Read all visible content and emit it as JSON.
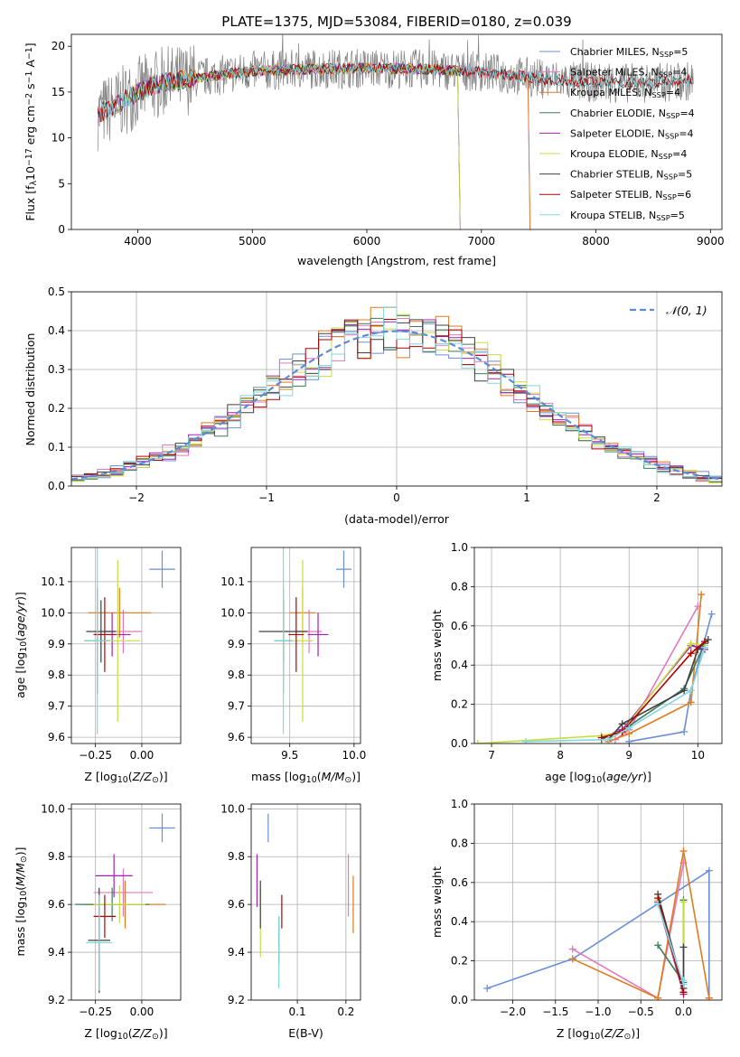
{
  "figure_title": "PLATE=1375, MJD=53084, FIBERID=0180, z=0.039",
  "colors": {
    "Chabrier MILES": "#6a8fd6",
    "Salpeter MILES": "#e377c2",
    "Kroupa MILES": "#e07b20",
    "Chabrier ELODIE": "#3b7a57",
    "Salpeter ELODIE": "#a020b0",
    "Kroupa ELODIE": "#c8dc40",
    "Chabrier STELIB": "#404040",
    "Salpeter STELIB": "#b00000",
    "Kroupa STELIB": "#80d8e0"
  },
  "chart_data": [
    {
      "id": "spectrum",
      "type": "line",
      "title": "PLATE=1375, MJD=53084, FIBERID=0180, z=0.039",
      "xlabel": "wavelength [Angstrom, rest frame]",
      "ylabel": "Flux [f_λ10^-17 erg cm^-2 s^-1 A^-1]",
      "xlim": [
        3420,
        9100
      ],
      "ylim": [
        0,
        21.3
      ],
      "xticks": [
        4000,
        5000,
        6000,
        7000,
        8000,
        9000
      ],
      "yticks": [
        0,
        5,
        10,
        15,
        20
      ],
      "legend_position": "top-right",
      "legend": [
        {
          "label": "Chabrier MILES, N",
          "sub": "SSP",
          "sup": "=5"
        },
        {
          "label": "Salpeter MILES, N",
          "sub": "SSP",
          "sup": "=4"
        },
        {
          "label": "Kroupa MILES, N",
          "sub": "SSP",
          "sup": "=4"
        },
        {
          "label": "Chabrier ELODIE, N",
          "sub": "SSP",
          "sup": "=4"
        },
        {
          "label": "Salpeter ELODIE, N",
          "sub": "SSP",
          "sup": "=4"
        },
        {
          "label": "Kroupa ELODIE, N",
          "sub": "SSP",
          "sup": "=4"
        },
        {
          "label": "Chabrier STELIB, N",
          "sub": "SSP",
          "sup": "=5"
        },
        {
          "label": "Salpeter STELIB, N",
          "sub": "SSP",
          "sup": "=6"
        },
        {
          "label": "Kroupa STELIB, N",
          "sub": "SSP",
          "sup": "=5"
        }
      ],
      "continuum": {
        "x": [
          3650,
          3800,
          4000,
          4200,
          4500,
          4800,
          5000,
          5500,
          6000,
          6500,
          7000,
          7500,
          8000,
          8500,
          8850
        ],
        "y": [
          12.5,
          13.5,
          15.0,
          16.0,
          16.5,
          17.0,
          17.3,
          17.5,
          17.6,
          17.5,
          17.2,
          16.5,
          16.0,
          16.0,
          16.2
        ]
      },
      "model_ranges": [
        {
          "model": "Chabrier MILES",
          "x": [
            3650,
            7410
          ]
        },
        {
          "model": "Salpeter MILES",
          "x": [
            3650,
            7410
          ]
        },
        {
          "model": "Kroupa MILES",
          "x": [
            3650,
            7410
          ]
        },
        {
          "model": "Chabrier ELODIE",
          "x": [
            3900,
            6800
          ]
        },
        {
          "model": "Salpeter ELODIE",
          "x": [
            3900,
            6800
          ]
        },
        {
          "model": "Kroupa ELODIE",
          "x": [
            3900,
            6800
          ]
        },
        {
          "model": "Chabrier STELIB",
          "x": [
            3650,
            8850
          ]
        },
        {
          "model": "Salpeter STELIB",
          "x": [
            3650,
            8850
          ]
        },
        {
          "model": "Kroupa STELIB",
          "x": [
            3650,
            8850
          ]
        }
      ]
    },
    {
      "id": "residuals",
      "type": "histogram",
      "xlabel": "(data-model)/error",
      "ylabel": "Normed distribution",
      "xlim": [
        -2.5,
        2.5
      ],
      "ylim": [
        0,
        0.5
      ],
      "xticks": [
        -2,
        -1,
        0,
        1,
        2
      ],
      "yticks": [
        0.0,
        0.1,
        0.2,
        0.3,
        0.4,
        0.5
      ],
      "grid": true,
      "legend_position": "top-right",
      "reference_curve": {
        "label": "𝒩(0, 1)",
        "mean": 0,
        "sigma": 1,
        "style": "dashed"
      }
    },
    {
      "id": "age-vs-Z",
      "type": "scatter",
      "xlabel": "Z [log10(Z/Z⊙)]",
      "ylabel": "age [log10(age/yr)]",
      "xlim": [
        -0.38,
        0.21
      ],
      "ylim": [
        9.58,
        10.21
      ],
      "xticks": [
        -0.25,
        0.0
      ],
      "yticks": [
        9.6,
        9.7,
        9.8,
        9.9,
        10.0,
        10.1
      ],
      "grid": true,
      "points": [
        {
          "model": "Chabrier MILES",
          "x": 0.11,
          "y": 10.14,
          "xerr": 0.07,
          "yerr": 0.06
        },
        {
          "model": "Salpeter MILES",
          "x": -0.1,
          "y": 9.94,
          "xerr": 0.1,
          "yerr": 0.07
        },
        {
          "model": "Kroupa MILES",
          "x": -0.12,
          "y": 10.0,
          "xerr": 0.17,
          "yerr": 0.08
        },
        {
          "model": "Chabrier ELODIE",
          "x": -0.24,
          "y": 9.91,
          "xerr": 0.07,
          "yerr": 0.17
        },
        {
          "model": "Salpeter ELODIE",
          "x": -0.16,
          "y": 9.93,
          "xerr": 0.1,
          "yerr": 0.07
        },
        {
          "model": "Kroupa ELODIE",
          "x": -0.13,
          "y": 9.91,
          "xerr": 0.12,
          "yerr": 0.26
        },
        {
          "model": "Chabrier STELIB",
          "x": -0.22,
          "y": 9.94,
          "xerr": 0.08,
          "yerr": 0.1
        },
        {
          "model": "Salpeter STELIB",
          "x": -0.2,
          "y": 9.93,
          "xerr": 0.06,
          "yerr": 0.12
        },
        {
          "model": "Kroupa STELIB",
          "x": -0.24,
          "y": 9.91,
          "xerr": 0.07,
          "yerr": 0.3
        }
      ]
    },
    {
      "id": "age-vs-mass",
      "type": "scatter",
      "xlabel": "mass [log10(M/M⊙)]",
      "ylabel": "",
      "xlim": [
        9.2,
        10.05
      ],
      "ylim": [
        9.58,
        10.21
      ],
      "xticks": [
        9.5,
        10.0
      ],
      "yticks": [
        9.6,
        9.7,
        9.8,
        9.9,
        10.0,
        10.1
      ],
      "grid": true,
      "points": [
        {
          "model": "Chabrier MILES",
          "x": 9.92,
          "y": 10.14,
          "xerr": 0.06,
          "yerr": 0.06
        },
        {
          "model": "Salpeter MILES",
          "x": 9.65,
          "y": 9.94,
          "xerr": 0.1,
          "yerr": 0.07
        },
        {
          "model": "Kroupa MILES",
          "x": 9.6,
          "y": 10.0,
          "xerr": 0.1,
          "yerr": 0.08
        },
        {
          "model": "Chabrier ELODIE",
          "x": 9.45,
          "y": 9.91,
          "xerr": 0.07,
          "yerr": 0.17
        },
        {
          "model": "Salpeter ELODIE",
          "x": 9.72,
          "y": 9.93,
          "xerr": 0.08,
          "yerr": 0.07
        },
        {
          "model": "Kroupa ELODIE",
          "x": 9.6,
          "y": 9.91,
          "xerr": 0.08,
          "yerr": 0.26
        },
        {
          "model": "Chabrier STELIB",
          "x": 9.45,
          "y": 9.94,
          "xerr": 0.19,
          "yerr": 0.1
        },
        {
          "model": "Salpeter STELIB",
          "x": 9.55,
          "y": 9.93,
          "xerr": 0.06,
          "yerr": 0.12
        },
        {
          "model": "Kroupa STELIB",
          "x": 9.45,
          "y": 9.91,
          "xerr": 0.07,
          "yerr": 0.3
        }
      ]
    },
    {
      "id": "massweight-vs-age",
      "type": "line",
      "xlabel": "age [log10(age/yr)]",
      "ylabel": "mass weight",
      "xlim": [
        6.75,
        10.35
      ],
      "ylim": [
        0,
        1.0
      ],
      "xticks": [
        7,
        8,
        9,
        10
      ],
      "yticks": [
        0.0,
        0.2,
        0.4,
        0.6,
        0.8,
        1.0
      ],
      "grid": true,
      "series": [
        {
          "model": "Chabrier MILES",
          "x": [
            9.0,
            9.8,
            9.9,
            10.2
          ],
          "y": [
            0.01,
            0.06,
            0.27,
            0.66
          ]
        },
        {
          "model": "Salpeter MILES",
          "x": [
            8.8,
            9.0,
            10.0
          ],
          "y": [
            0.02,
            0.07,
            0.7
          ]
        },
        {
          "model": "Kroupa MILES",
          "x": [
            8.7,
            9.0,
            9.9,
            10.05
          ],
          "y": [
            0.01,
            0.05,
            0.21,
            0.76
          ]
        },
        {
          "model": "Chabrier ELODIE",
          "x": [
            8.6,
            9.0,
            9.8,
            10.1
          ],
          "y": [
            0.02,
            0.09,
            0.28,
            0.51
          ]
        },
        {
          "model": "Salpeter ELODIE",
          "x": [
            8.6,
            8.9,
            9.9,
            10.1
          ],
          "y": [
            0.03,
            0.07,
            0.5,
            0.48
          ]
        },
        {
          "model": "Kroupa ELODIE",
          "x": [
            6.8,
            8.6,
            8.9,
            9.9,
            10.1
          ],
          "y": [
            0.0,
            0.04,
            0.06,
            0.51,
            0.5
          ]
        },
        {
          "model": "Chabrier STELIB",
          "x": [
            8.7,
            8.9,
            9.8,
            10.0,
            10.15
          ],
          "y": [
            0.02,
            0.1,
            0.27,
            0.48,
            0.53
          ]
        },
        {
          "model": "Salpeter STELIB",
          "x": [
            8.6,
            8.9,
            9.9,
            10.1
          ],
          "y": [
            0.03,
            0.06,
            0.46,
            0.52
          ]
        },
        {
          "model": "Kroupa STELIB",
          "x": [
            7.5,
            8.7,
            9.0,
            9.9,
            10.1
          ],
          "y": [
            0.01,
            0.02,
            0.08,
            0.27,
            0.49
          ]
        }
      ]
    },
    {
      "id": "mass-vs-Z",
      "type": "scatter",
      "xlabel": "Z [log10(Z/Z⊙)]",
      "ylabel": "mass [log10(M/M⊙)]",
      "xlim": [
        -0.38,
        0.21
      ],
      "ylim": [
        9.2,
        10.02
      ],
      "xticks": [
        -0.25,
        0.0
      ],
      "yticks": [
        9.2,
        9.4,
        9.6,
        9.8,
        10.0
      ],
      "grid": true,
      "points": [
        {
          "model": "Chabrier MILES",
          "x": 0.11,
          "y": 9.92,
          "xerr": 0.07,
          "yerr": 0.06
        },
        {
          "model": "Salpeter MILES",
          "x": -0.1,
          "y": 9.65,
          "xerr": 0.16,
          "yerr": 0.1
        },
        {
          "model": "Kroupa MILES",
          "x": -0.09,
          "y": 9.6,
          "xerr": 0.22,
          "yerr": 0.1
        },
        {
          "model": "Chabrier ELODIE",
          "x": -0.16,
          "y": 9.6,
          "xerr": 0.2,
          "yerr": 0.07
        },
        {
          "model": "Salpeter ELODIE",
          "x": -0.15,
          "y": 9.72,
          "xerr": 0.1,
          "yerr": 0.09
        },
        {
          "model": "Kroupa ELODIE",
          "x": -0.12,
          "y": 9.6,
          "xerr": 0.14,
          "yerr": 0.08
        },
        {
          "model": "Chabrier STELIB",
          "x": -0.23,
          "y": 9.45,
          "xerr": 0.06,
          "yerr": 0.22
        },
        {
          "model": "Salpeter STELIB",
          "x": -0.2,
          "y": 9.55,
          "xerr": 0.06,
          "yerr": 0.09
        },
        {
          "model": "Kroupa STELIB",
          "x": -0.23,
          "y": 9.44,
          "xerr": 0.07,
          "yerr": 0.2
        }
      ]
    },
    {
      "id": "mass-vs-ebv",
      "type": "scatter",
      "xlabel": "E(B-V)",
      "ylabel": "",
      "xlim": [
        0.005,
        0.23
      ],
      "ylim": [
        9.2,
        10.02
      ],
      "xticks": [
        0.1,
        0.2
      ],
      "yticks": [
        9.2,
        9.4,
        9.6,
        9.8,
        10.0
      ],
      "grid": true,
      "points": [
        {
          "model": "Chabrier MILES",
          "x": 0.04,
          "y": 9.92,
          "yerr": 0.06
        },
        {
          "model": "Salpeter MILES",
          "x": 0.205,
          "y": 9.68,
          "yerr": 0.13
        },
        {
          "model": "Kroupa MILES",
          "x": 0.215,
          "y": 9.6,
          "yerr": 0.12
        },
        {
          "model": "Chabrier ELODIE",
          "x": 0.062,
          "y": 9.45,
          "yerr": 0.1
        },
        {
          "model": "Salpeter ELODIE",
          "x": 0.017,
          "y": 9.7,
          "yerr": 0.11
        },
        {
          "model": "Kroupa ELODIE",
          "x": 0.024,
          "y": 9.52,
          "yerr": 0.14
        },
        {
          "model": "Chabrier STELIB",
          "x": 0.024,
          "y": 9.6,
          "yerr": 0.1
        },
        {
          "model": "Salpeter STELIB",
          "x": 0.068,
          "y": 9.57,
          "yerr": 0.07
        },
        {
          "model": "Kroupa STELIB",
          "x": 0.062,
          "y": 9.4,
          "yerr": 0.15
        }
      ]
    },
    {
      "id": "massweight-vs-Z",
      "type": "line",
      "xlabel": "Z [log10(Z/Z⊙)]",
      "ylabel": "mass weight",
      "xlim": [
        -2.45,
        0.45
      ],
      "ylim": [
        0,
        1.0
      ],
      "xticks": [
        -2.0,
        -1.5,
        -1.0,
        -0.5,
        0.0
      ],
      "yticks": [
        0.0,
        0.2,
        0.4,
        0.6,
        0.8,
        1.0
      ],
      "grid": true,
      "series": [
        {
          "model": "Chabrier MILES",
          "x": [
            -2.3,
            -1.3,
            0.3,
            0.3
          ],
          "y": [
            0.06,
            0.21,
            0.66,
            0.01
          ]
        },
        {
          "model": "Salpeter MILES",
          "x": [
            -1.3,
            -0.3,
            0.0
          ],
          "y": [
            0.26,
            0.01,
            0.7
          ]
        },
        {
          "model": "Kroupa MILES",
          "x": [
            -1.3,
            -0.3,
            0.0,
            0.3
          ],
          "y": [
            0.21,
            0.01,
            0.76,
            0.01
          ]
        },
        {
          "model": "Chabrier ELODIE",
          "x": [
            -0.3,
            0.0,
            0.0
          ],
          "y": [
            0.28,
            0.09,
            0.51
          ]
        },
        {
          "model": "Salpeter ELODIE",
          "x": [
            -0.3,
            0.0
          ],
          "y": [
            0.5,
            0.03
          ]
        },
        {
          "model": "Kroupa ELODIE",
          "x": [
            -0.3,
            0.0,
            0.0
          ],
          "y": [
            0.51,
            0.04,
            0.5
          ]
        },
        {
          "model": "Chabrier STELIB",
          "x": [
            -0.3,
            0.0,
            0.0
          ],
          "y": [
            0.54,
            0.06,
            0.27
          ]
        },
        {
          "model": "Salpeter STELIB",
          "x": [
            -0.3,
            0.0
          ],
          "y": [
            0.52,
            0.04
          ]
        },
        {
          "model": "Kroupa STELIB",
          "x": [
            -0.3,
            0.0,
            0.0
          ],
          "y": [
            0.49,
            0.08,
            0.1
          ]
        }
      ]
    }
  ]
}
